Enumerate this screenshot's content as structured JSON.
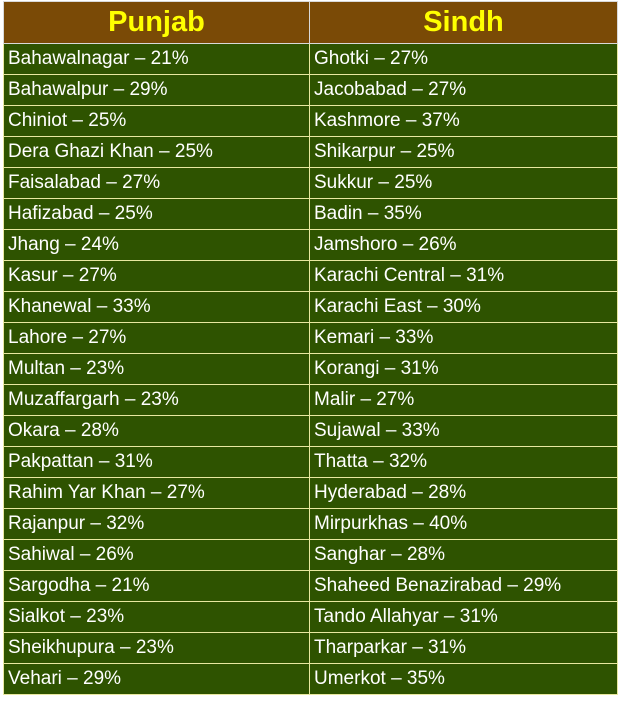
{
  "table": {
    "headers": [
      "Punjab",
      "Sindh"
    ],
    "rows": [
      [
        "Bahawalnagar – 21%",
        "Ghotki – 27%"
      ],
      [
        "Bahawalpur – 29%",
        "Jacobabad – 27%"
      ],
      [
        "Chiniot – 25%",
        "Kashmore – 37%"
      ],
      [
        "Dera Ghazi Khan – 25%",
        "Shikarpur – 25%"
      ],
      [
        "Faisalabad – 27%",
        "Sukkur – 25%"
      ],
      [
        "Hafizabad – 25%",
        "Badin – 35%"
      ],
      [
        "Jhang – 24%",
        "Jamshoro – 26%"
      ],
      [
        "Kasur – 27%",
        "Karachi Central – 31%"
      ],
      [
        "Khanewal – 33%",
        "Karachi East – 30%"
      ],
      [
        "Lahore – 27%",
        "Kemari – 33%"
      ],
      [
        "Multan – 23%",
        "Korangi – 31%"
      ],
      [
        "Muzaffargarh – 23%",
        "Malir – 27%"
      ],
      [
        "Okara – 28%",
        "Sujawal – 33%"
      ],
      [
        "Pakpattan – 31%",
        "Thatta – 32%"
      ],
      [
        "Rahim Yar Khan – 27%",
        "Hyderabad – 28%"
      ],
      [
        "Rajanpur – 32%",
        "Mirpurkhas – 40%"
      ],
      [
        "Sahiwal – 26%",
        "Sanghar – 28%"
      ],
      [
        "Sargodha – 21%",
        "Shaheed Benazirabad – 29%"
      ],
      [
        "Sialkot – 23%",
        "Tando Allahyar – 31%"
      ],
      [
        "Sheikhupura – 23%",
        "Tharparkar – 31%"
      ],
      [
        "Vehari – 29%",
        "Umerkot – 35%"
      ]
    ]
  },
  "colors": {
    "header_background": "#7a4a06",
    "header_text": "#ffff00",
    "cell_background": "#2e5300",
    "cell_text": "#ffffff",
    "grid_line": "#e8e8a0"
  }
}
